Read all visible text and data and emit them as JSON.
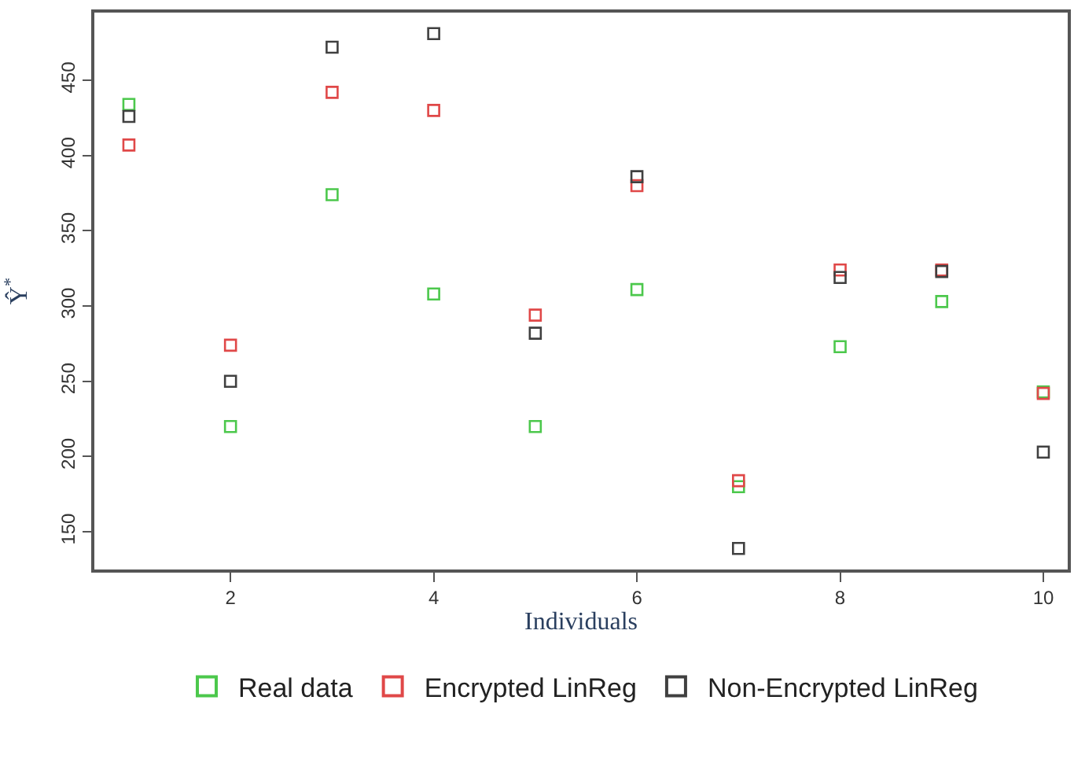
{
  "chart_data": {
    "type": "scatter",
    "xlabel": "Individuals",
    "ylabel": "Ŷ$^{*}$",
    "x": [
      1,
      2,
      3,
      4,
      5,
      6,
      7,
      8,
      9,
      10
    ],
    "series": [
      {
        "name": "Real data",
        "color": "#4cc84c",
        "values": [
          434,
          220,
          374,
          308,
          220,
          311,
          180,
          273,
          303,
          243
        ]
      },
      {
        "name": "Encrypted LinReg",
        "color": "#e04848",
        "values": [
          407,
          274,
          442,
          430,
          294,
          380,
          184,
          324,
          324,
          242
        ]
      },
      {
        "name": "Non-Encrypted LinReg",
        "color": "#404040",
        "values": [
          426,
          250,
          472,
          481,
          282,
          386,
          139,
          319,
          323,
          203
        ]
      }
    ],
    "xlim": [
      0.66,
      10.24
    ],
    "ylim": [
      125,
      495
    ],
    "xticks": [
      2,
      4,
      6,
      8,
      10
    ],
    "yticks": [
      150,
      200,
      250,
      300,
      350,
      400,
      450
    ],
    "grid": false,
    "legend": "bottom",
    "marker": "square"
  }
}
